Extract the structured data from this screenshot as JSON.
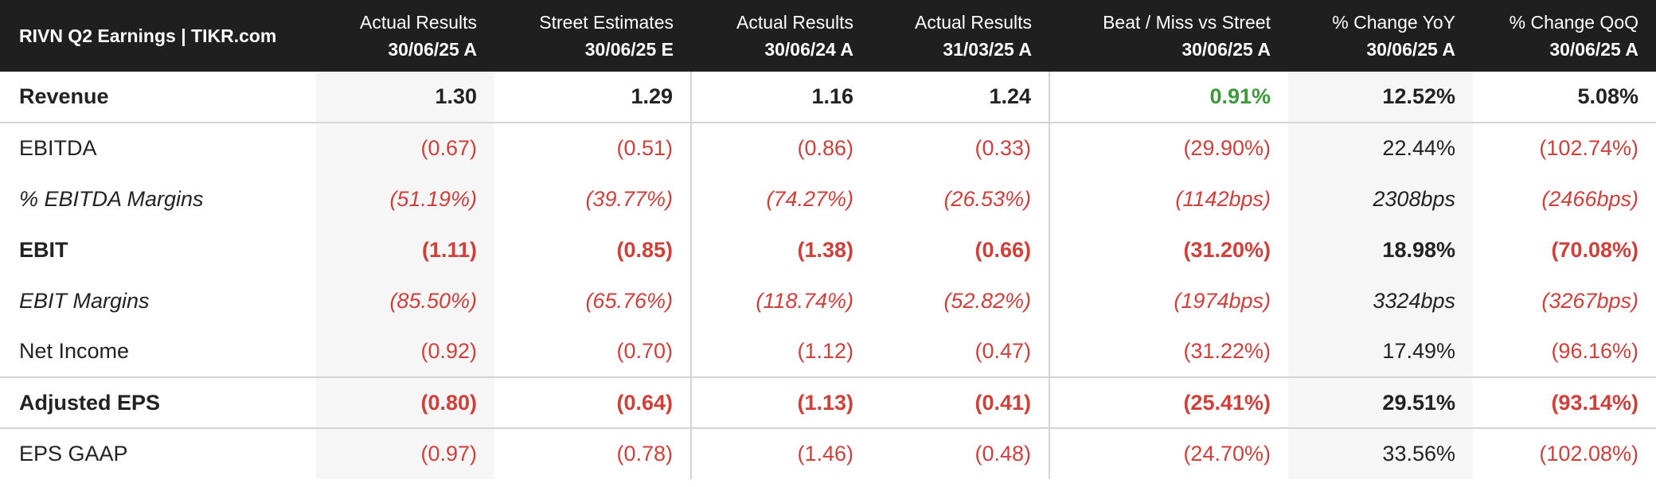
{
  "table": {
    "title": "RIVN Q2 Earnings | TIKR.com",
    "columns": [
      {
        "label": "Actual Results",
        "date": "30/06/25 A"
      },
      {
        "label": "Street Estimates",
        "date": "30/06/25 E"
      },
      {
        "label": "Actual Results",
        "date": "30/06/24 A"
      },
      {
        "label": "Actual Results",
        "date": "31/03/25 A"
      },
      {
        "label": "Beat / Miss vs Street",
        "date": "30/06/25 A"
      },
      {
        "label": "% Change YoY",
        "date": "30/06/25 A"
      },
      {
        "label": "% Change QoQ",
        "date": "30/06/25 A"
      }
    ],
    "rows": [
      {
        "label": "Revenue",
        "values": [
          "1.30",
          "1.29",
          "1.16",
          "1.24",
          "0.91%",
          "12.52%",
          "5.08%"
        ]
      },
      {
        "label": "EBITDA",
        "values": [
          "(0.67)",
          "(0.51)",
          "(0.86)",
          "(0.33)",
          "(29.90%)",
          "22.44%",
          "(102.74%)"
        ]
      },
      {
        "label": "% EBITDA Margins",
        "values": [
          "(51.19%)",
          "(39.77%)",
          "(74.27%)",
          "(26.53%)",
          "(1142bps)",
          "2308bps",
          "(2466bps)"
        ]
      },
      {
        "label": "EBIT",
        "values": [
          "(1.11)",
          "(0.85)",
          "(1.38)",
          "(0.66)",
          "(31.20%)",
          "18.98%",
          "(70.08%)"
        ]
      },
      {
        "label": "EBIT Margins",
        "values": [
          "(85.50%)",
          "(65.76%)",
          "(118.74%)",
          "(52.82%)",
          "(1974bps)",
          "3324bps",
          "(3267bps)"
        ]
      },
      {
        "label": "Net Income",
        "values": [
          "(0.92)",
          "(0.70)",
          "(1.12)",
          "(0.47)",
          "(31.22%)",
          "17.49%",
          "(96.16%)"
        ]
      },
      {
        "label": "Adjusted EPS",
        "values": [
          "(0.80)",
          "(0.64)",
          "(1.13)",
          "(0.41)",
          "(25.41%)",
          "29.51%",
          "(93.14%)"
        ]
      },
      {
        "label": "EPS GAAP",
        "values": [
          "(0.97)",
          "(0.78)",
          "(1.46)",
          "(0.48)",
          "(24.70%)",
          "33.56%",
          "(102.08%)"
        ]
      }
    ]
  },
  "colors": {
    "header_bg": "#1f1f1f",
    "negative": "#d0403a",
    "positive": "#3d9a3a",
    "shaded_column": "#f6f6f6"
  }
}
